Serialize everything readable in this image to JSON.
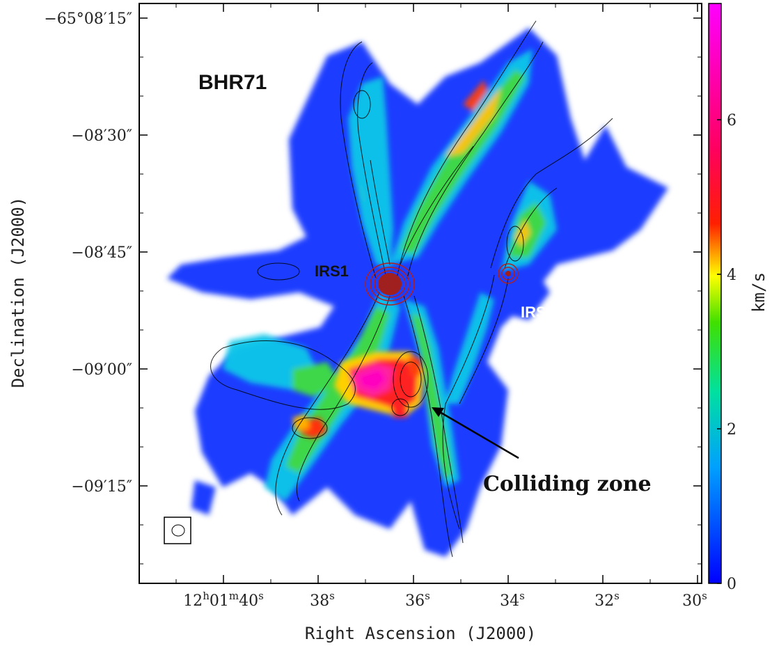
{
  "chart_data": {
    "type": "heatmap",
    "title": "",
    "xlabel": "Right Ascension (J2000)",
    "ylabel": "Declination (J2000)",
    "x_ticks": [
      {
        "main": "12",
        "h": "h",
        "m_val": "01",
        "m": "m",
        "s_val": "40",
        "s": "s"
      },
      {
        "s_val": "38",
        "s": "s"
      },
      {
        "s_val": "36",
        "s": "s"
      },
      {
        "s_val": "34",
        "s": "s"
      },
      {
        "s_val": "32",
        "s": "s"
      },
      {
        "s_val": "30",
        "s": "s"
      }
    ],
    "y_ticks": [
      "−65°08′15″",
      "−08′30″",
      "−08′45″",
      "−09′00″",
      "−09′15″"
    ],
    "colorbar": {
      "label": "km/s",
      "ticks": [
        "0",
        "2",
        "4",
        "6"
      ],
      "range": [
        0,
        7.5
      ],
      "colors": [
        "#0000ff",
        "#00c8ff",
        "#00e060",
        "#ffff00",
        "#ff0000",
        "#ff00ff"
      ]
    },
    "annotations": {
      "source": "BHR71",
      "irs1": "IRS1",
      "irs2": "IRS2",
      "colliding": "Colliding zone"
    }
  }
}
